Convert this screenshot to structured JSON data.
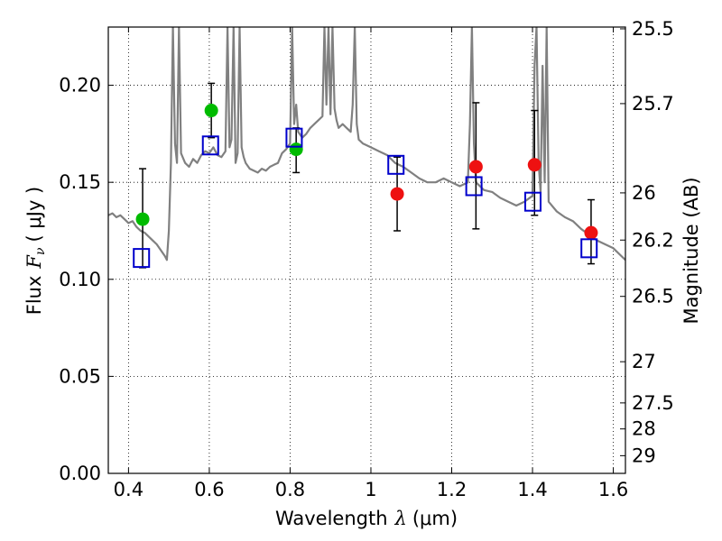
{
  "chart_data": {
    "type": "scatter",
    "xlabel": "Wavelength",
    "xlabel_math": "λ",
    "xlabel_unit": "(μm)",
    "ylabel": "Flux",
    "ylabel_math": "F",
    "ylabel_sub": "ν",
    "ylabel_unit": "( μJy )",
    "y2label": "Magnitude (AB)",
    "xlim": [
      0.35,
      1.63
    ],
    "ylim": [
      0.0,
      0.23
    ],
    "xticks": [
      0.4,
      0.6,
      0.8,
      1.0,
      1.2,
      1.4,
      1.6
    ],
    "xtick_labels": [
      "0.4",
      "0.6",
      "0.8",
      "1",
      "1.2",
      "1.4",
      "1.6"
    ],
    "yticks": [
      0.0,
      0.05,
      0.1,
      0.15,
      0.2
    ],
    "ytick_labels": [
      "0.00",
      "0.05",
      "0.10",
      "0.15",
      "0.20"
    ],
    "mag_ticks": [
      {
        "label": "25.5",
        "mag": 25.5
      },
      {
        "label": "25.7",
        "mag": 25.7
      },
      {
        "label": "26",
        "mag": 26.0
      },
      {
        "label": "26.2",
        "mag": 26.2
      },
      {
        "label": "26.5",
        "mag": 26.5
      },
      {
        "label": "27",
        "mag": 27.0
      },
      {
        "label": "27.5",
        "mag": 27.5
      },
      {
        "label": "28",
        "mag": 28.0
      },
      {
        "label": "29",
        "mag": 29.0
      }
    ],
    "grid": true,
    "colors": {
      "model": "#808080",
      "green": "#00bb00",
      "red": "#ee1111",
      "box": "#0000cc",
      "errorbar": "#000000",
      "grid": "#000000"
    },
    "series": [
      {
        "name": "model-spectrum",
        "type": "line",
        "x": [
          0.35,
          0.36,
          0.37,
          0.38,
          0.39,
          0.4,
          0.41,
          0.42,
          0.43,
          0.44,
          0.45,
          0.46,
          0.47,
          0.48,
          0.49,
          0.495,
          0.5,
          0.505,
          0.51,
          0.515,
          0.52,
          0.525,
          0.53,
          0.54,
          0.55,
          0.56,
          0.57,
          0.58,
          0.59,
          0.6,
          0.61,
          0.62,
          0.63,
          0.64,
          0.645,
          0.65,
          0.655,
          0.66,
          0.665,
          0.67,
          0.675,
          0.68,
          0.685,
          0.69,
          0.7,
          0.71,
          0.72,
          0.73,
          0.74,
          0.75,
          0.76,
          0.77,
          0.78,
          0.79,
          0.8,
          0.805,
          0.81,
          0.815,
          0.82,
          0.83,
          0.84,
          0.85,
          0.86,
          0.87,
          0.88,
          0.885,
          0.89,
          0.895,
          0.9,
          0.905,
          0.91,
          0.915,
          0.92,
          0.93,
          0.94,
          0.95,
          0.955,
          0.96,
          0.965,
          0.97,
          0.98,
          1.0,
          1.02,
          1.04,
          1.06,
          1.08,
          1.1,
          1.12,
          1.14,
          1.16,
          1.18,
          1.2,
          1.22,
          1.24,
          1.245,
          1.25,
          1.255,
          1.26,
          1.28,
          1.3,
          1.32,
          1.34,
          1.36,
          1.38,
          1.4,
          1.405,
          1.41,
          1.415,
          1.42,
          1.425,
          1.43,
          1.435,
          1.44,
          1.46,
          1.48,
          1.5,
          1.52,
          1.54,
          1.56,
          1.58,
          1.6,
          1.62,
          1.63
        ],
        "y": [
          0.133,
          0.134,
          0.132,
          0.133,
          0.131,
          0.129,
          0.13,
          0.127,
          0.125,
          0.124,
          0.122,
          0.12,
          0.118,
          0.115,
          0.112,
          0.11,
          0.125,
          0.16,
          0.23,
          0.17,
          0.16,
          0.23,
          0.165,
          0.16,
          0.158,
          0.162,
          0.16,
          0.164,
          0.166,
          0.165,
          0.168,
          0.164,
          0.163,
          0.166,
          0.23,
          0.168,
          0.172,
          0.23,
          0.16,
          0.165,
          0.23,
          0.168,
          0.163,
          0.16,
          0.157,
          0.156,
          0.155,
          0.157,
          0.156,
          0.158,
          0.159,
          0.16,
          0.165,
          0.167,
          0.17,
          0.23,
          0.18,
          0.19,
          0.176,
          0.173,
          0.175,
          0.178,
          0.18,
          0.182,
          0.184,
          0.23,
          0.19,
          0.23,
          0.185,
          0.23,
          0.188,
          0.182,
          0.178,
          0.18,
          0.178,
          0.176,
          0.19,
          0.23,
          0.18,
          0.172,
          0.17,
          0.168,
          0.166,
          0.164,
          0.16,
          0.158,
          0.155,
          0.152,
          0.15,
          0.15,
          0.152,
          0.15,
          0.148,
          0.15,
          0.18,
          0.23,
          0.17,
          0.15,
          0.146,
          0.145,
          0.142,
          0.14,
          0.138,
          0.14,
          0.143,
          0.21,
          0.23,
          0.16,
          0.145,
          0.21,
          0.15,
          0.23,
          0.14,
          0.135,
          0.132,
          0.13,
          0.126,
          0.123,
          0.12,
          0.118,
          0.116,
          0.112,
          0.11
        ]
      },
      {
        "name": "observed-green",
        "type": "scatter",
        "marker": "circle",
        "x": [
          0.435,
          0.605,
          0.815
        ],
        "y": [
          0.131,
          0.187,
          0.167
        ]
      },
      {
        "name": "observed-red",
        "type": "scatter",
        "marker": "circle",
        "x": [
          1.065,
          1.26,
          1.405,
          1.545
        ],
        "y": [
          0.144,
          0.158,
          0.159,
          0.124
        ]
      },
      {
        "name": "model-bandpass",
        "type": "scatter",
        "marker": "open-square",
        "x": [
          0.432,
          0.603,
          0.81,
          1.062,
          1.255,
          1.401,
          1.54
        ],
        "y": [
          0.111,
          0.169,
          0.173,
          0.159,
          0.148,
          0.14,
          0.116
        ]
      },
      {
        "name": "errorbars",
        "type": "errorbar",
        "x": [
          0.435,
          0.605,
          0.815,
          1.065,
          1.26,
          1.405,
          1.545
        ],
        "ylow": [
          0.106,
          0.173,
          0.155,
          0.125,
          0.126,
          0.133,
          0.108
        ],
        "yhigh": [
          0.157,
          0.201,
          0.178,
          0.163,
          0.191,
          0.187,
          0.141
        ]
      }
    ]
  }
}
